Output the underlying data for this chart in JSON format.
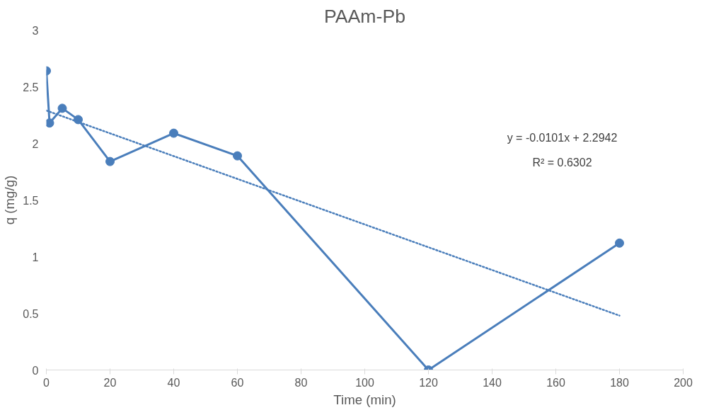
{
  "chart_data": {
    "type": "line",
    "title": "PAAm-Pb",
    "xlabel": "Time (min)",
    "ylabel": "q (mg/g)",
    "xlim": [
      0,
      200
    ],
    "xticks": [
      0,
      20,
      40,
      60,
      80,
      100,
      120,
      140,
      160,
      180,
      200
    ],
    "ylim": [
      0,
      3
    ],
    "yticks": [
      0,
      0.5,
      1,
      1.5,
      2,
      2.5,
      3
    ],
    "grid": false,
    "marker": "circle",
    "line_style": "solid",
    "series": [
      {
        "color": "#4a7ebb",
        "x": [
          0,
          1,
          5,
          10,
          20,
          40,
          60,
          120,
          180
        ],
        "values": [
          2.64,
          2.18,
          2.31,
          2.21,
          1.84,
          2.09,
          1.89,
          0,
          1.12
        ]
      },
      {
        "type": "line",
        "color": "#4a7ebb",
        "line_style": "dotted",
        "marker": "none",
        "x": [
          0,
          180
        ],
        "values": [
          2.29,
          0.48
        ]
      }
    ],
    "annotations": [
      "y = -0.0101x + 2.2942",
      "R² = 0.6302"
    ]
  }
}
